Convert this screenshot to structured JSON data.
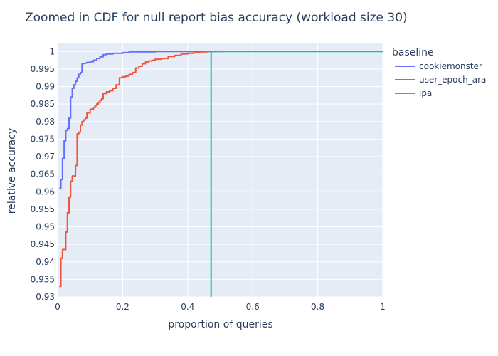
{
  "chart_data": {
    "type": "line",
    "line_shape": "step",
    "title": "Zoomed in CDF for null report bias accuracy (workload size 30)",
    "xlabel": "proportion of queries",
    "ylabel": "relative accuracy",
    "xlim": [
      0,
      1
    ],
    "ylim": [
      0.93,
      1.0025
    ],
    "x_ticks": [
      0,
      0.2,
      0.4,
      0.6,
      0.8,
      1
    ],
    "x_tick_labels": [
      "0",
      "0.2",
      "0.4",
      "0.6",
      "0.8",
      "1"
    ],
    "y_ticks": [
      0.93,
      0.935,
      0.94,
      0.945,
      0.95,
      0.955,
      0.96,
      0.965,
      0.97,
      0.975,
      0.98,
      0.985,
      0.99,
      0.995,
      1
    ],
    "y_tick_labels": [
      "0.93",
      "0.935",
      "0.94",
      "0.945",
      "0.95",
      "0.955",
      "0.96",
      "0.965",
      "0.97",
      "0.975",
      "0.98",
      "0.985",
      "0.99",
      "0.995",
      "1"
    ],
    "grid": true,
    "plot_bgcolor": "#e5ecf6",
    "legend": {
      "title": "baseline",
      "placement": "right"
    },
    "series": [
      {
        "name": "cookiemonster",
        "color": "#636efa",
        "x": [
          0.005,
          0.01,
          0.015,
          0.02,
          0.025,
          0.03,
          0.035,
          0.04,
          0.045,
          0.05,
          0.055,
          0.06,
          0.065,
          0.07,
          0.075,
          0.08,
          0.085,
          0.09,
          0.1,
          0.11,
          0.12,
          0.13,
          0.14,
          0.15,
          0.17,
          0.2,
          0.22,
          0.3,
          0.4,
          0.51
        ],
        "y": [
          0.961,
          0.9635,
          0.9695,
          0.9745,
          0.9775,
          0.978,
          0.981,
          0.987,
          0.9895,
          0.9905,
          0.9915,
          0.9925,
          0.9935,
          0.994,
          0.9965,
          0.9966,
          0.9967,
          0.9969,
          0.9971,
          0.9975,
          0.998,
          0.9985,
          0.9991,
          0.9993,
          0.9995,
          0.9997,
          0.9999,
          1.0,
          1.0,
          1.0
        ]
      },
      {
        "name": "user_epoch_ara",
        "color": "#ef553b",
        "x": [
          0.005,
          0.01,
          0.015,
          0.025,
          0.03,
          0.035,
          0.04,
          0.045,
          0.055,
          0.06,
          0.065,
          0.07,
          0.075,
          0.08,
          0.085,
          0.09,
          0.1,
          0.11,
          0.115,
          0.12,
          0.125,
          0.13,
          0.135,
          0.14,
          0.15,
          0.16,
          0.17,
          0.18,
          0.19,
          0.2,
          0.21,
          0.22,
          0.23,
          0.24,
          0.25,
          0.26,
          0.27,
          0.28,
          0.29,
          0.3,
          0.32,
          0.34,
          0.36,
          0.38,
          0.4,
          0.42,
          0.44,
          0.46,
          0.48
        ],
        "y": [
          0.933,
          0.941,
          0.9435,
          0.9485,
          0.954,
          0.9585,
          0.963,
          0.9645,
          0.9675,
          0.9765,
          0.977,
          0.979,
          0.98,
          0.9805,
          0.981,
          0.9825,
          0.9835,
          0.984,
          0.9845,
          0.985,
          0.9855,
          0.986,
          0.9865,
          0.988,
          0.9885,
          0.9888,
          0.9895,
          0.9905,
          0.9925,
          0.9928,
          0.993,
          0.9935,
          0.994,
          0.9953,
          0.9958,
          0.9965,
          0.997,
          0.9973,
          0.9975,
          0.9978,
          0.998,
          0.9986,
          0.9989,
          0.9993,
          0.9995,
          0.9997,
          0.9999,
          1.0,
          1.0
        ]
      },
      {
        "name": "ipa",
        "color": "#00cc96",
        "x": [
          0.472,
          0.472,
          1.0
        ],
        "y": [
          0.93,
          1.0,
          1.0
        ]
      }
    ]
  }
}
